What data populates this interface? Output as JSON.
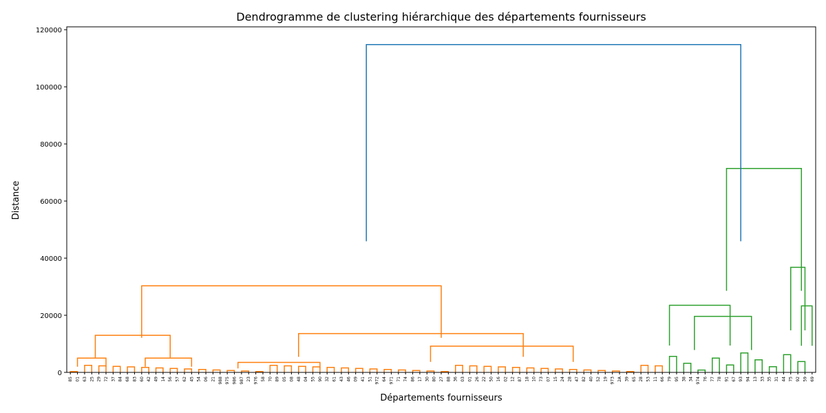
{
  "chart_data": {
    "type": "dendrogram",
    "title": "Dendrogramme de clustering hiérarchique des départements fournisseurs",
    "xlabel": "Départements fournisseurs",
    "ylabel": "Distance",
    "ylim": [
      0,
      121000
    ],
    "yticks": [
      0,
      20000,
      40000,
      60000,
      80000,
      100000,
      120000
    ],
    "ytick_labels": [
      "0",
      "20000",
      "40000",
      "60000",
      "80000",
      "100000",
      "120000"
    ],
    "grid": false,
    "colors": {
      "root": "#1f77b4",
      "cluster_1": "#ff7f0e",
      "cluster_2": "#2ca02c"
    },
    "leaf_labels": [
      "85",
      "01",
      "63",
      "25",
      "29",
      "72",
      "37",
      "84",
      "68",
      "83",
      "60",
      "42",
      "49",
      "14",
      "56",
      "57",
      "62",
      "45",
      "54",
      "06",
      "21",
      "988",
      "975",
      "986",
      "987",
      "23",
      "976",
      "58",
      "70",
      "89",
      "05",
      "08",
      "48",
      "04",
      "55",
      "90",
      "32",
      "61",
      "43",
      "46",
      "09",
      "41",
      "51",
      "972",
      "64",
      "971",
      "71",
      "74",
      "86",
      "17",
      "30",
      "80",
      "27",
      "88",
      "36",
      "03",
      "01",
      "26",
      "22",
      "50",
      "16",
      "02",
      "12",
      "87",
      "18",
      "10",
      "73",
      "07",
      "15",
      "24",
      "28",
      "47",
      "82",
      "40",
      "52",
      "19",
      "973",
      "2A",
      "39",
      "65",
      "28",
      "53",
      "11",
      "66",
      "79",
      "95",
      "38",
      "34",
      "974",
      "76",
      "77",
      "78",
      "91",
      "67",
      "93",
      "94",
      "13",
      "33",
      "35",
      "31",
      "44",
      "75",
      "92",
      "59",
      "69"
    ],
    "clusters": [
      {
        "label_range": [
          0,
          83
        ],
        "color": "cluster_1",
        "merges": [
          {
            "left": [
              0,
              3
            ],
            "right": [
              3,
              8
            ],
            "height": 5000
          },
          {
            "left": [
              8,
              14
            ],
            "right": [
              14,
              21
            ],
            "height": 5000
          },
          {
            "left": [
              0,
              8
            ],
            "right": [
              8,
              21
            ],
            "height": 13000
          },
          {
            "left": [
              21,
              27
            ],
            "right": [
              27,
              44
            ],
            "height": 3500
          },
          {
            "left": [
              44,
              58
            ],
            "right": [
              58,
              84
            ],
            "height": 9200
          },
          {
            "left": [
              21,
              44
            ],
            "right": [
              44,
              84
            ],
            "height": 13600
          },
          {
            "left": [
              0,
              21
            ],
            "right": [
              21,
              84
            ],
            "height": 30300
          }
        ]
      },
      {
        "label_range": [
          84,
          104
        ],
        "color": "cluster_2",
        "merges": [
          {
            "left": [
              85,
              91
            ],
            "right": [
              91,
              101
            ],
            "height": 19600
          },
          {
            "left": [
              84,
              85
            ],
            "right": [
              85,
              101
            ],
            "height": 23500
          },
          {
            "left": [
              102,
              104
            ],
            "right": [
              104,
              105
            ],
            "height": 23300
          },
          {
            "left": [
              101,
              102
            ],
            "right": [
              102,
              105
            ],
            "height": 36800
          },
          {
            "left": [
              84,
              101
            ],
            "right": [
              101,
              105
            ],
            "height": 71400
          }
        ]
      },
      {
        "label_range": [
          0,
          104
        ],
        "color": "root",
        "merges": [
          {
            "left": [
              0,
              84
            ],
            "right": [
              84,
              105
            ],
            "height": 114800
          }
        ]
      }
    ]
  }
}
